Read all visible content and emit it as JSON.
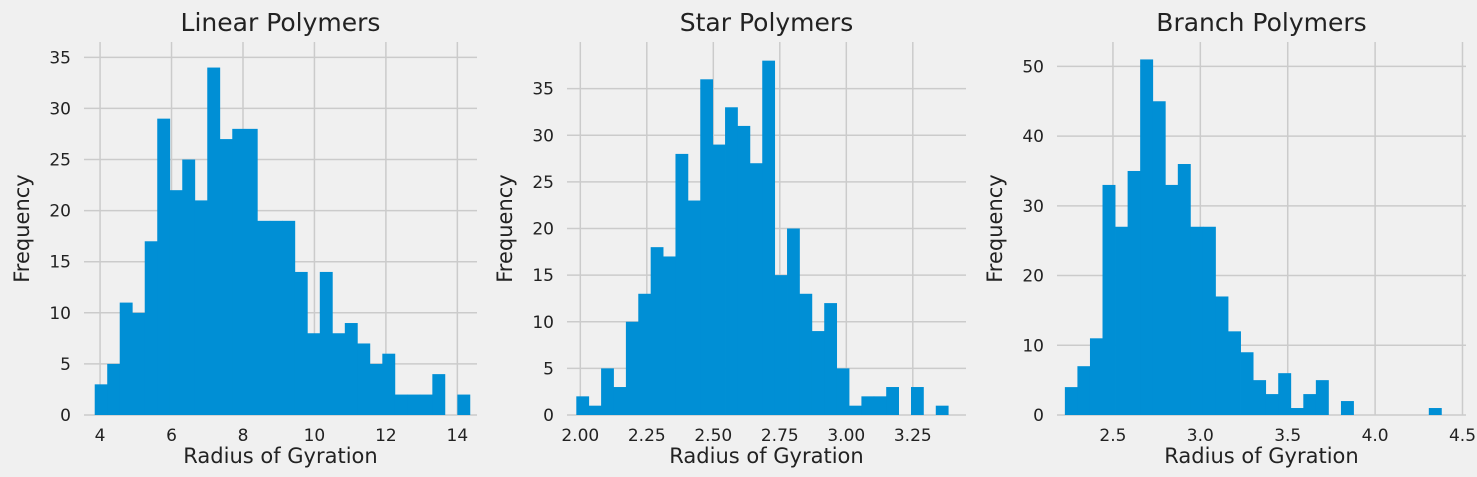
{
  "figure": {
    "background": "#f0f0f0",
    "bar_color": "#008fd5",
    "grid_color": "#cbcbcb"
  },
  "chart_data": [
    {
      "type": "bar",
      "title": "Linear Polymers",
      "xlabel": "Radius of Gyration",
      "ylabel": "Frequency",
      "xlim": [
        3.55,
        14.55
      ],
      "ylim": [
        0,
        36.5
      ],
      "xticks": [
        4,
        6,
        8,
        10,
        12,
        14
      ],
      "yticks": [
        0,
        5,
        10,
        15,
        20,
        25,
        30,
        35
      ],
      "grid": true,
      "bins": {
        "start": 3.85,
        "width": 0.35
      },
      "values": [
        3,
        5,
        11,
        10,
        17,
        29,
        22,
        25,
        21,
        34,
        27,
        28,
        28,
        19,
        19,
        19,
        14,
        8,
        14,
        8,
        9,
        7,
        5,
        6,
        2,
        2,
        2,
        4,
        0,
        2
      ]
    },
    {
      "type": "bar",
      "title": "Star Polymers",
      "xlabel": "Radius of Gyration",
      "ylabel": "Frequency",
      "xlim": [
        1.95,
        3.45
      ],
      "ylim": [
        0,
        40
      ],
      "xticks": [
        2.0,
        2.25,
        2.5,
        2.75,
        3.0,
        3.25
      ],
      "yticks": [
        0,
        5,
        10,
        15,
        20,
        25,
        30,
        35
      ],
      "tick_format": 2,
      "grid": true,
      "bins": {
        "start": 1.985,
        "width": 0.0466
      },
      "values": [
        2,
        1,
        5,
        3,
        10,
        13,
        18,
        17,
        28,
        23,
        36,
        29,
        33,
        31,
        27,
        38,
        15,
        20,
        13,
        9,
        12,
        5,
        1,
        2,
        2,
        3,
        0,
        3,
        0,
        1
      ]
    },
    {
      "type": "bar",
      "title": "Branch Polymers",
      "xlabel": "Radius of Gyration",
      "ylabel": "Frequency",
      "xlim": [
        2.18,
        4.52
      ],
      "ylim": [
        0,
        53.5
      ],
      "xticks": [
        2.5,
        3.0,
        3.5,
        4.0,
        4.5
      ],
      "yticks": [
        0,
        10,
        20,
        30,
        40,
        50
      ],
      "tick_format": 1,
      "grid": true,
      "bins": {
        "start": 2.225,
        "width": 0.0718
      },
      "values": [
        4,
        7,
        11,
        33,
        27,
        35,
        51,
        45,
        33,
        36,
        27,
        27,
        17,
        12,
        9,
        5,
        3,
        6,
        1,
        3,
        5,
        0,
        2,
        0,
        0,
        0,
        0,
        0,
        0,
        1
      ]
    }
  ]
}
